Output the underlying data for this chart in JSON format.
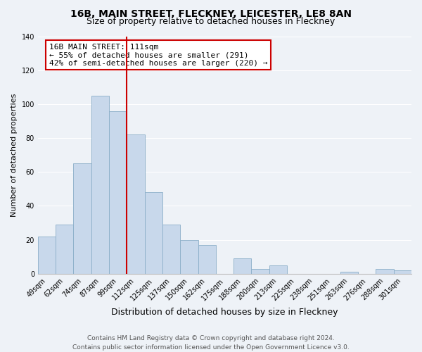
{
  "title": "16B, MAIN STREET, FLECKNEY, LEICESTER, LE8 8AN",
  "subtitle": "Size of property relative to detached houses in Fleckney",
  "xlabel": "Distribution of detached houses by size in Fleckney",
  "ylabel": "Number of detached properties",
  "categories": [
    "49sqm",
    "62sqm",
    "74sqm",
    "87sqm",
    "99sqm",
    "112sqm",
    "125sqm",
    "137sqm",
    "150sqm",
    "162sqm",
    "175sqm",
    "188sqm",
    "200sqm",
    "213sqm",
    "225sqm",
    "238sqm",
    "251sqm",
    "263sqm",
    "276sqm",
    "288sqm",
    "301sqm"
  ],
  "values": [
    22,
    29,
    65,
    105,
    96,
    82,
    48,
    29,
    20,
    17,
    0,
    9,
    3,
    5,
    0,
    0,
    0,
    1,
    0,
    3,
    2
  ],
  "bar_color": "#c8d8eb",
  "bar_edge_color": "#8aaec8",
  "vline_x": 4.5,
  "vline_color": "#cc0000",
  "annotation_text": "16B MAIN STREET: 111sqm\n← 55% of detached houses are smaller (291)\n42% of semi-detached houses are larger (220) →",
  "annotation_box_color": "#ffffff",
  "annotation_box_edge_color": "#cc0000",
  "ylim": [
    0,
    140
  ],
  "yticks": [
    0,
    20,
    40,
    60,
    80,
    100,
    120,
    140
  ],
  "footer_line1": "Contains HM Land Registry data © Crown copyright and database right 2024.",
  "footer_line2": "Contains public sector information licensed under the Open Government Licence v3.0.",
  "title_fontsize": 10,
  "subtitle_fontsize": 9,
  "xlabel_fontsize": 9,
  "ylabel_fontsize": 8,
  "tick_fontsize": 7,
  "footer_fontsize": 6.5,
  "annotation_fontsize": 8,
  "bg_color": "#eef2f7",
  "grid_color": "#ffffff",
  "spine_color": "#bbbbbb"
}
